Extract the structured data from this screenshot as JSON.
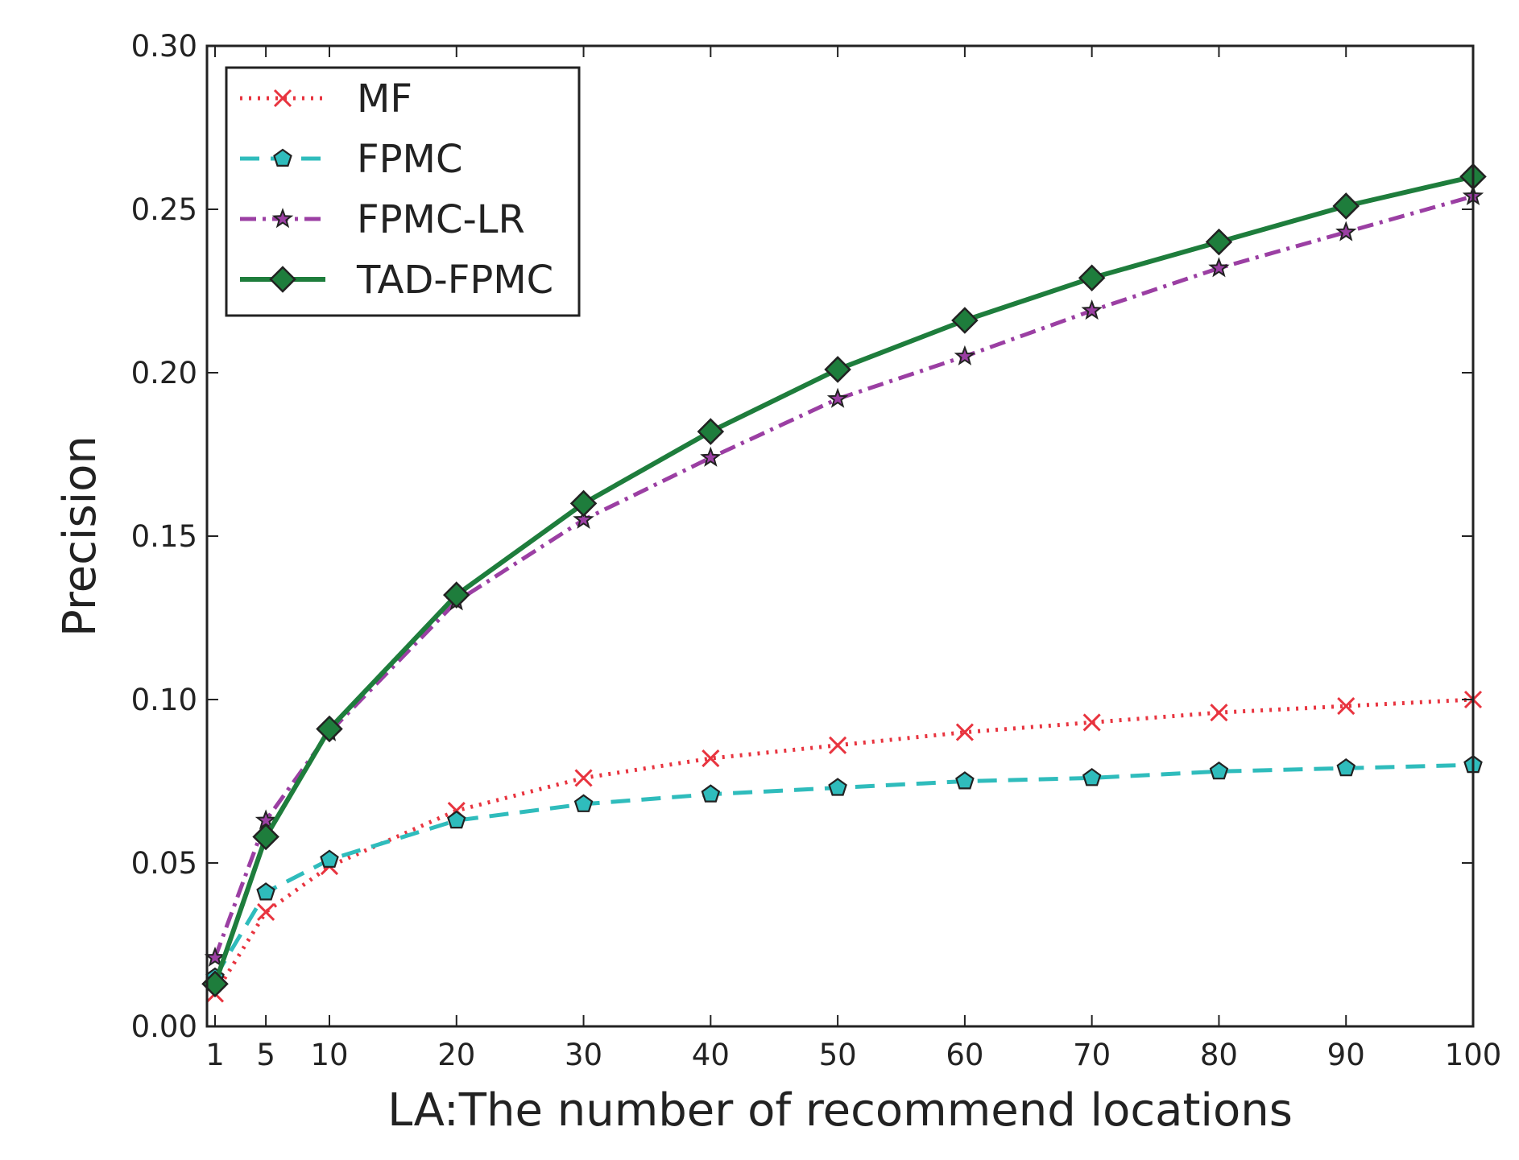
{
  "chart_data": {
    "type": "line",
    "xlabel": "LA:The number of recommend locations",
    "ylabel": "Precision",
    "x": [
      1,
      5,
      10,
      20,
      30,
      40,
      50,
      60,
      70,
      80,
      90,
      100
    ],
    "x_tick_labels": [
      "1",
      "5",
      "10",
      "20",
      "30",
      "40",
      "50",
      "60",
      "70",
      "80",
      "90",
      "100"
    ],
    "xlim": [
      0,
      100
    ],
    "ylim": [
      0.0,
      0.3
    ],
    "y_ticks": [
      0.0,
      0.05,
      0.1,
      0.15,
      0.2,
      0.25,
      0.3
    ],
    "y_tick_labels": [
      "0.00",
      "0.05",
      "0.10",
      "0.15",
      "0.20",
      "0.25",
      "0.30"
    ],
    "grid": false,
    "legend_position": "top-left",
    "series": [
      {
        "name": "MF",
        "color": "#e8343f",
        "line_style": "dotted",
        "marker": "x",
        "values": [
          0.01,
          0.035,
          0.049,
          0.066,
          0.076,
          0.082,
          0.086,
          0.09,
          0.093,
          0.096,
          0.098,
          0.1
        ]
      },
      {
        "name": "FPMC",
        "color": "#2fbcbc",
        "line_style": "dashed",
        "marker": "pentagon",
        "values": [
          0.015,
          0.041,
          0.051,
          0.063,
          0.068,
          0.071,
          0.073,
          0.075,
          0.076,
          0.078,
          0.079,
          0.08
        ]
      },
      {
        "name": "FPMC-LR",
        "color": "#9b3fa3",
        "line_style": "dashdot",
        "marker": "star",
        "values": [
          0.021,
          0.063,
          0.09,
          0.13,
          0.155,
          0.174,
          0.192,
          0.205,
          0.219,
          0.232,
          0.243,
          0.254
        ]
      },
      {
        "name": "TAD-FPMC",
        "color": "#1e7d3c",
        "line_style": "solid",
        "marker": "diamond",
        "values": [
          0.013,
          0.058,
          0.091,
          0.132,
          0.16,
          0.182,
          0.201,
          0.216,
          0.229,
          0.24,
          0.251,
          0.26
        ]
      }
    ]
  }
}
